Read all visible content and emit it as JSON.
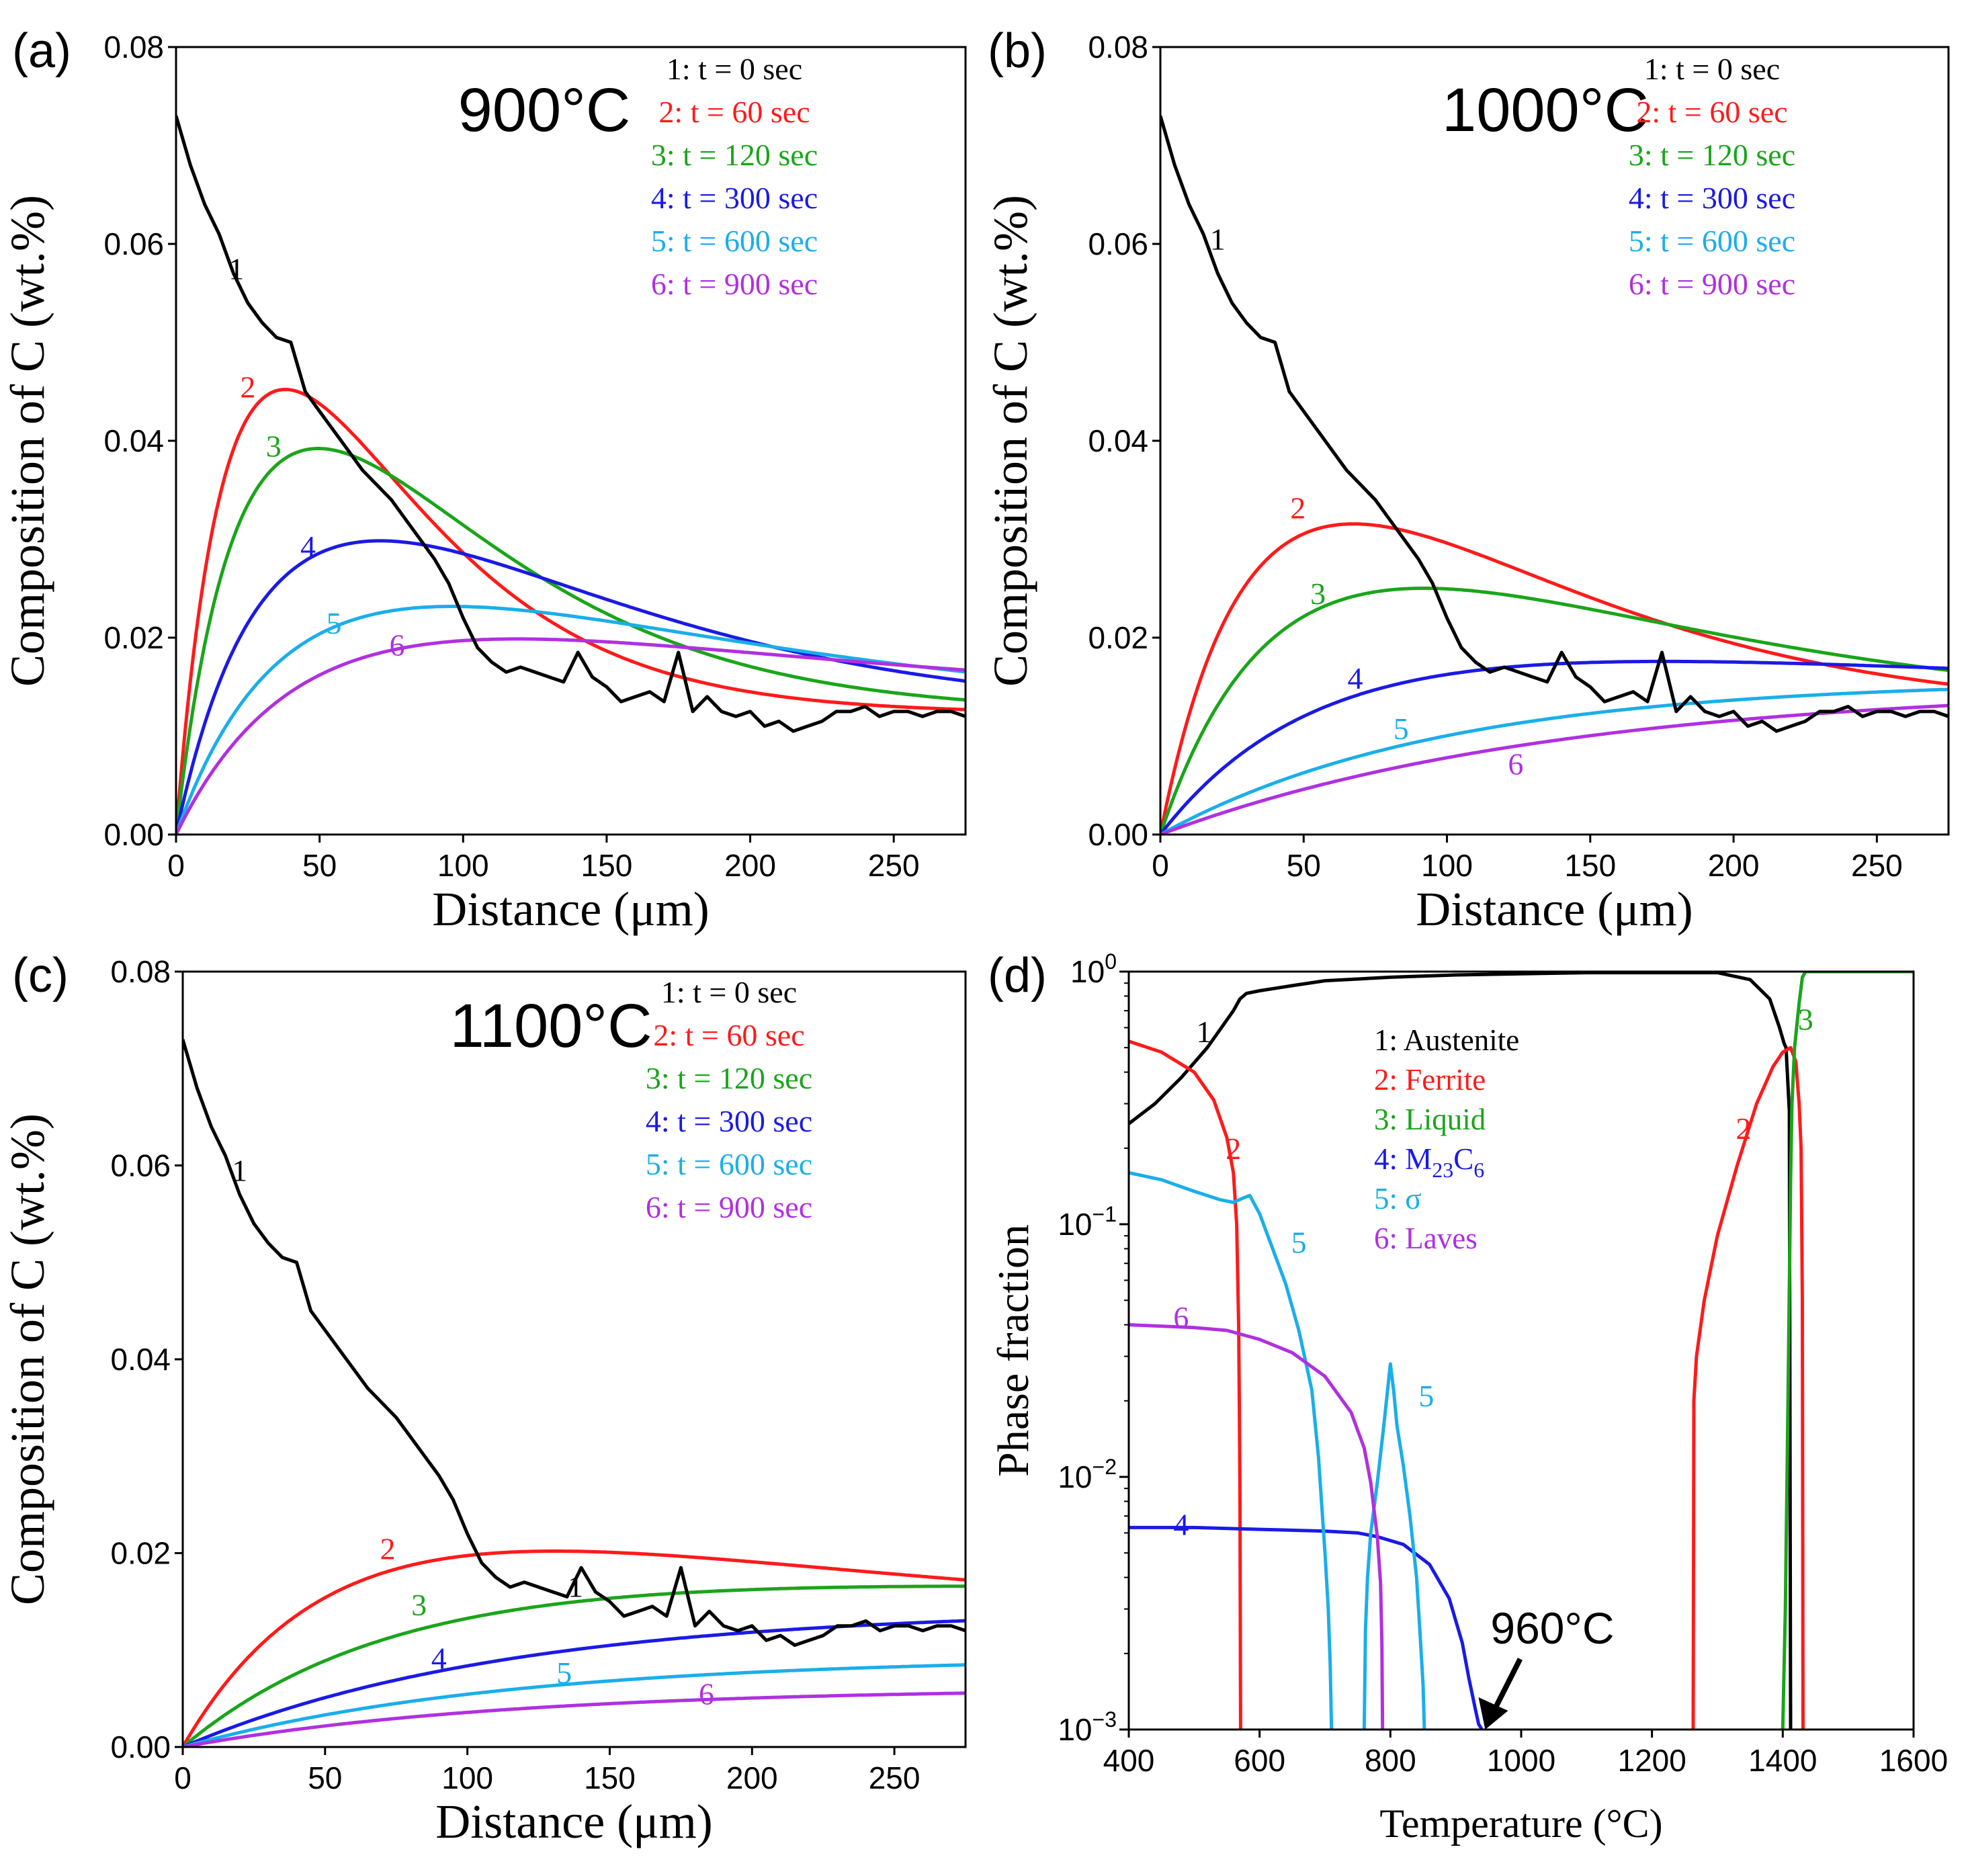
{
  "figure": {
    "colors": {
      "1": "#000000",
      "2": "#ff1a1a",
      "3": "#1aa51a",
      "4": "#1a1ae6",
      "5": "#1aaeea",
      "6": "#b030e0"
    }
  },
  "chart_data": [
    {
      "id": "a",
      "panel_label": "(a)",
      "type": "line",
      "title": "900°C",
      "xlabel": "Distance (μm)",
      "ylabel": "Composition of C (wt.%)",
      "xlim": [
        0,
        275
      ],
      "ylim": [
        0,
        0.08
      ],
      "xticks": [
        "0",
        "50",
        "100",
        "150",
        "200",
        "250"
      ],
      "yticks": [
        "0.00",
        "0.02",
        "0.04",
        "0.06",
        "0.08"
      ],
      "legend": [
        "1: t = 0 sec",
        "2: t = 60 sec",
        "3: t = 120 sec",
        "4: t = 300 sec",
        "5: t = 600 sec",
        "6: t = 900 sec"
      ],
      "legend_position": "top-right",
      "measured": {
        "name": "1",
        "x": [
          0,
          5,
          10,
          15,
          20,
          25,
          30,
          35,
          40,
          45,
          50,
          55,
          60,
          65,
          70,
          75,
          80,
          85,
          90,
          95,
          100,
          105,
          110,
          115,
          120,
          125,
          130,
          135,
          140,
          145,
          150,
          155,
          160,
          165,
          170,
          175,
          180,
          185,
          190,
          195,
          200,
          205,
          210,
          215,
          220,
          225,
          230,
          235,
          240,
          245,
          250,
          255,
          260,
          265,
          270,
          275
        ],
        "y": [
          0.073,
          0.068,
          0.064,
          0.061,
          0.057,
          0.054,
          0.052,
          0.0505,
          0.05,
          0.045,
          0.043,
          0.041,
          0.039,
          0.037,
          0.0355,
          0.034,
          0.032,
          0.03,
          0.028,
          0.0255,
          0.022,
          0.019,
          0.0175,
          0.0165,
          0.017,
          0.0165,
          0.016,
          0.0155,
          0.0185,
          0.016,
          0.015,
          0.0135,
          0.014,
          0.0145,
          0.0135,
          0.0185,
          0.0125,
          0.014,
          0.0125,
          0.012,
          0.0125,
          0.011,
          0.0115,
          0.0105,
          0.011,
          0.0115,
          0.0125,
          0.0125,
          0.013,
          0.012,
          0.0125,
          0.0125,
          0.012,
          0.0125,
          0.0125,
          0.012
        ]
      },
      "series": [
        {
          "name": "2",
          "C0": 0.0123,
          "k": 0.1045,
          "peak_x": 37,
          "peak_y": 0.0452
        },
        {
          "name": "3",
          "C0": 0.0123,
          "k": 0.0812,
          "peak_x": 48,
          "peak_y": 0.0392
        },
        {
          "name": "4",
          "C0": 0.0123,
          "k": 0.0526,
          "peak_x": 67,
          "peak_y": 0.0298
        },
        {
          "name": "5",
          "C0": 0.0125,
          "k": 0.0385,
          "peak_x": 87,
          "peak_y": 0.0231
        },
        {
          "name": "6",
          "C0": 0.0134,
          "k": 0.0305,
          "peak_x": 100,
          "peak_y": 0.0197
        }
      ],
      "annotations": [
        {
          "text": "1",
          "x": 21,
          "y": 0.0575
        },
        {
          "text": "2",
          "x": 25,
          "y": 0.0455
        },
        {
          "text": "3",
          "x": 34,
          "y": 0.0395
        },
        {
          "text": "4",
          "x": 46,
          "y": 0.0293
        },
        {
          "text": "5",
          "x": 55,
          "y": 0.0215
        },
        {
          "text": "6",
          "x": 77,
          "y": 0.0193
        }
      ]
    },
    {
      "id": "b",
      "panel_label": "(b)",
      "type": "line",
      "title": "1000°C",
      "xlabel": "Distance (μm)",
      "ylabel": "Composition of C (wt.%)",
      "xlim": [
        0,
        275
      ],
      "ylim": [
        0,
        0.08
      ],
      "xticks": [
        "0",
        "50",
        "100",
        "150",
        "200",
        "250"
      ],
      "yticks": [
        "0.00",
        "0.02",
        "0.04",
        "0.06",
        "0.08"
      ],
      "legend": [
        "1: t = 0 sec",
        "2: t = 60 sec",
        "3: t = 120 sec",
        "4: t = 300 sec",
        "5: t = 600 sec",
        "6: t = 900 sec"
      ],
      "legend_position": "top-right",
      "measured": {
        "name": "1",
        "x": [
          0,
          5,
          10,
          15,
          20,
          25,
          30,
          35,
          40,
          45,
          50,
          55,
          60,
          65,
          70,
          75,
          80,
          85,
          90,
          95,
          100,
          105,
          110,
          115,
          120,
          125,
          130,
          135,
          140,
          145,
          150,
          155,
          160,
          165,
          170,
          175,
          180,
          185,
          190,
          195,
          200,
          205,
          210,
          215,
          220,
          225,
          230,
          235,
          240,
          245,
          250,
          255,
          260,
          265,
          270,
          275
        ],
        "y": [
          0.073,
          0.068,
          0.064,
          0.061,
          0.057,
          0.054,
          0.052,
          0.0505,
          0.05,
          0.045,
          0.043,
          0.041,
          0.039,
          0.037,
          0.0355,
          0.034,
          0.032,
          0.03,
          0.028,
          0.0255,
          0.022,
          0.019,
          0.0175,
          0.0165,
          0.017,
          0.0165,
          0.016,
          0.0155,
          0.0185,
          0.016,
          0.015,
          0.0135,
          0.014,
          0.0145,
          0.0135,
          0.0185,
          0.0125,
          0.014,
          0.0125,
          0.012,
          0.0125,
          0.011,
          0.0115,
          0.0105,
          0.011,
          0.0115,
          0.0125,
          0.0125,
          0.013,
          0.012,
          0.0125,
          0.0125,
          0.012,
          0.0125,
          0.0125,
          0.012
        ]
      },
      "series": [
        {
          "name": "2",
          "C0": 0.0123,
          "k": 0.0508,
          "peak_x": 63,
          "peak_y": 0.0315
        },
        {
          "name": "3",
          "C0": 0.0125,
          "k": 0.0352,
          "peak_x": 82,
          "peak_y": 0.0249
        },
        {
          "name": "4",
          "C0": 0.0142,
          "k": 0.0209,
          "peak_x": 130,
          "peak_y": 0.0172
        },
        {
          "name": "5",
          "C0": 0.0157,
          "k": 0.0102,
          "peak_x": null,
          "peak_y": null
        },
        {
          "name": "6",
          "C0": 0.0152,
          "k": 0.0072,
          "peak_x": null,
          "peak_y": null
        }
      ],
      "annotations": [
        {
          "text": "1",
          "x": 20,
          "y": 0.0605
        },
        {
          "text": "2",
          "x": 48,
          "y": 0.0332
        },
        {
          "text": "3",
          "x": 55,
          "y": 0.0245
        },
        {
          "text": "4",
          "x": 68,
          "y": 0.0159
        },
        {
          "text": "5",
          "x": 84,
          "y": 0.0108
        },
        {
          "text": "6",
          "x": 124,
          "y": 0.0072
        }
      ]
    },
    {
      "id": "c",
      "panel_label": "(c)",
      "type": "line",
      "title": "1100°C",
      "xlabel": "Distance (μm)",
      "ylabel": "Composition of C (wt.%)",
      "xlim": [
        0,
        275
      ],
      "ylim": [
        0,
        0.08
      ],
      "xticks": [
        "0",
        "50",
        "100",
        "150",
        "200",
        "250"
      ],
      "yticks": [
        "0.00",
        "0.02",
        "0.04",
        "0.06",
        "0.08"
      ],
      "legend": [
        "1: t = 0 sec",
        "2: t = 60 sec",
        "3: t = 120 sec",
        "4: t = 300 sec",
        "5: t = 600 sec",
        "6: t = 900 sec"
      ],
      "legend_position": "top-right",
      "measured": {
        "name": "1",
        "x": [
          0,
          5,
          10,
          15,
          20,
          25,
          30,
          35,
          40,
          45,
          50,
          55,
          60,
          65,
          70,
          75,
          80,
          85,
          90,
          95,
          100,
          105,
          110,
          115,
          120,
          125,
          130,
          135,
          140,
          145,
          150,
          155,
          160,
          165,
          170,
          175,
          180,
          185,
          190,
          195,
          200,
          205,
          210,
          215,
          220,
          225,
          230,
          235,
          240,
          245,
          250,
          255,
          260,
          265,
          270,
          275
        ],
        "y": [
          0.073,
          0.068,
          0.064,
          0.061,
          0.057,
          0.054,
          0.052,
          0.0505,
          0.05,
          0.045,
          0.043,
          0.041,
          0.039,
          0.037,
          0.0355,
          0.034,
          0.032,
          0.03,
          0.028,
          0.0255,
          0.022,
          0.019,
          0.0175,
          0.0165,
          0.017,
          0.0165,
          0.016,
          0.0155,
          0.0185,
          0.016,
          0.015,
          0.0135,
          0.014,
          0.0145,
          0.0135,
          0.0185,
          0.0125,
          0.014,
          0.0125,
          0.012,
          0.0125,
          0.011,
          0.0115,
          0.0105,
          0.011,
          0.0115,
          0.0125,
          0.0125,
          0.013,
          0.012,
          0.0125,
          0.0125,
          0.012,
          0.0125,
          0.0125,
          0.012
        ]
      },
      "series": [
        {
          "name": "2",
          "C0": 0.0132,
          "k": 0.0235,
          "peak_x": 105,
          "peak_y": 0.0199
        },
        {
          "name": "3",
          "C0": 0.0151,
          "k": 0.0142,
          "peak_x": 170,
          "peak_y": 0.0158
        },
        {
          "name": "4",
          "C0": 0.0143,
          "k": 0.0088,
          "peak_x": null,
          "peak_y": null
        },
        {
          "name": "5",
          "C0": 0.0093,
          "k": 0.0088,
          "peak_x": null,
          "peak_y": null
        },
        {
          "name": "6",
          "C0": 0.0061,
          "k": 0.0088,
          "peak_x": null,
          "peak_y": null
        }
      ],
      "annotations": [
        {
          "text": "1",
          "x": 20,
          "y": 0.0595
        },
        {
          "text": "1",
          "x": 138,
          "y": 0.0166
        },
        {
          "text": "2",
          "x": 72,
          "y": 0.0205
        },
        {
          "text": "3",
          "x": 83,
          "y": 0.0147
        },
        {
          "text": "4",
          "x": 90,
          "y": 0.0092
        },
        {
          "text": "5",
          "x": 134,
          "y": 0.0077
        },
        {
          "text": "6",
          "x": 184,
          "y": 0.0055
        }
      ]
    },
    {
      "id": "d",
      "panel_label": "(d)",
      "type": "line",
      "title": "",
      "xlabel": "Temperature (°C)",
      "ylabel": "Phase fraction",
      "yscale": "log",
      "xlim": [
        400,
        1600
      ],
      "ylim": [
        0.001,
        1
      ],
      "xticks": [
        "400",
        "600",
        "800",
        "1000",
        "1200",
        "1400",
        "1600"
      ],
      "yticks": [
        {
          "value": 0.001,
          "base": "10",
          "exp": "−3"
        },
        {
          "value": 0.01,
          "base": "10",
          "exp": "−2"
        },
        {
          "value": 0.1,
          "base": "10",
          "exp": "−1"
        },
        {
          "value": 1,
          "base": "10",
          "exp": "0"
        }
      ],
      "legend": [
        {
          "num": "1: ",
          "name": "Austenite"
        },
        {
          "num": "2: ",
          "name": "Ferrite"
        },
        {
          "num": "3: ",
          "name": "Liquid"
        },
        {
          "num": "4: ",
          "name": "M",
          "sub1": "23",
          "mid": "C",
          "sub2": "6"
        },
        {
          "num": "5: ",
          "name": "σ"
        },
        {
          "num": "6: ",
          "name": "Laves"
        }
      ],
      "legend_position": "upper-center",
      "series": [
        {
          "name": "1",
          "x": [
            400,
            440,
            480,
            520,
            560,
            570,
            580,
            600,
            650,
            700,
            800,
            900,
            1000,
            1100,
            1200,
            1300,
            1350,
            1380,
            1395,
            1402,
            1405,
            1410,
            1412
          ],
          "y": [
            0.25,
            0.3,
            0.38,
            0.5,
            0.7,
            0.78,
            0.82,
            0.84,
            0.88,
            0.92,
            0.95,
            0.97,
            0.98,
            0.99,
            0.99,
            0.99,
            0.93,
            0.78,
            0.6,
            0.52,
            0.5,
            0.28,
            0.001
          ]
        },
        {
          "name": "2",
          "x": [
            400,
            450,
            500,
            530,
            550,
            560,
            565,
            568,
            569,
            570,
            571
          ],
          "y": [
            0.53,
            0.48,
            0.4,
            0.31,
            0.22,
            0.16,
            0.1,
            0.04,
            0.02,
            0.008,
            0.001
          ]
        },
        {
          "name": "2",
          "x": [
            1263,
            1264,
            1268,
            1280,
            1300,
            1330,
            1360,
            1385,
            1400,
            1412,
            1420,
            1425,
            1428,
            1430,
            1431
          ],
          "y": [
            0.001,
            0.02,
            0.03,
            0.05,
            0.09,
            0.17,
            0.3,
            0.42,
            0.48,
            0.5,
            0.44,
            0.3,
            0.2,
            0.05,
            0.001
          ]
        },
        {
          "name": "3",
          "x": [
            1400,
            1404,
            1408,
            1412,
            1414,
            1418,
            1425,
            1430,
            1435,
            1450,
            1500,
            1600
          ],
          "y": [
            0.001,
            0.003,
            0.02,
            0.15,
            0.3,
            0.5,
            0.75,
            0.95,
            1,
            1,
            1,
            1
          ]
        },
        {
          "name": "4",
          "x": [
            400,
            500,
            600,
            700,
            750,
            780,
            820,
            860,
            890,
            910,
            920,
            930,
            935,
            940
          ],
          "y": [
            0.0063,
            0.0063,
            0.0062,
            0.0061,
            0.006,
            0.0058,
            0.0054,
            0.0045,
            0.0033,
            0.0022,
            0.0016,
            0.0012,
            0.00105,
            0.001
          ]
        },
        {
          "name": "5",
          "x": [
            400,
            450,
            500,
            540,
            560,
            575,
            585,
            600,
            620,
            640,
            660,
            680,
            690,
            700,
            705,
            708,
            710
          ],
          "y": [
            0.16,
            0.15,
            0.135,
            0.125,
            0.122,
            0.127,
            0.13,
            0.11,
            0.08,
            0.058,
            0.038,
            0.022,
            0.012,
            0.005,
            0.003,
            0.0018,
            0.001
          ]
        },
        {
          "name": "5",
          "x": [
            760,
            762,
            765,
            770,
            780,
            790,
            800,
            805,
            810,
            820,
            830,
            840,
            845,
            850,
            852
          ],
          "y": [
            0.001,
            0.0025,
            0.004,
            0.006,
            0.0095,
            0.016,
            0.028,
            0.022,
            0.016,
            0.011,
            0.007,
            0.004,
            0.0025,
            0.0015,
            0.001
          ]
        },
        {
          "name": "6",
          "x": [
            400,
            500,
            550,
            600,
            650,
            700,
            740,
            760,
            770,
            780,
            785,
            787,
            788
          ],
          "y": [
            0.04,
            0.039,
            0.038,
            0.035,
            0.031,
            0.025,
            0.018,
            0.013,
            0.0095,
            0.0058,
            0.0038,
            0.0022,
            0.001
          ]
        }
      ],
      "annotations": [
        {
          "text": "1",
          "x": 515,
          "y": 0.58
        },
        {
          "text": "2",
          "x": 560,
          "y": 0.2
        },
        {
          "text": "2",
          "x": 1340,
          "y": 0.24
        },
        {
          "text": "3",
          "x": 1435,
          "y": 0.65
        },
        {
          "text": "4",
          "x": 480,
          "y": 0.0065
        },
        {
          "text": "5",
          "x": 660,
          "y": 0.085
        },
        {
          "text": "5",
          "x": 855,
          "y": 0.021
        },
        {
          "text": "6",
          "x": 480,
          "y": 0.043
        }
      ],
      "callout": {
        "text": "960°C",
        "x": 945,
        "y": 0.001
      }
    }
  ]
}
